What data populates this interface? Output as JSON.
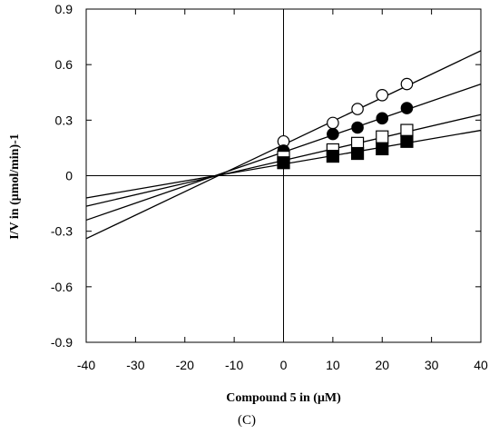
{
  "chart_data": {
    "type": "scatter",
    "title": "",
    "panel_label": "(C)",
    "xlabel": "Compound 5 in (μM)",
    "ylabel": "I/V in (μmol/min)-1",
    "xlim": [
      -40,
      40
    ],
    "ylim": [
      -0.9,
      0.9
    ],
    "x_ticks": [
      -40,
      -30,
      -20,
      -10,
      0,
      10,
      20,
      30,
      40
    ],
    "y_ticks": [
      -0.9,
      -0.6,
      -0.3,
      0,
      0.3,
      0.6,
      0.9
    ],
    "y_tick_labels": [
      "-0.9",
      "-0.6",
      "-0.3",
      "0",
      "0.3",
      "0.6",
      "0.9"
    ],
    "grid": false,
    "legend": "none",
    "x": [
      0,
      10,
      15,
      20,
      25
    ],
    "series": [
      {
        "marker": "open-circle",
        "values": [
          0.185,
          0.285,
          0.36,
          0.435,
          0.495
        ],
        "fit_line": {
          "x": [
            -40,
            40
          ],
          "y": [
            -0.34,
            0.675
          ]
        }
      },
      {
        "marker": "filled-circle",
        "values": [
          0.135,
          0.225,
          0.26,
          0.31,
          0.365
        ],
        "fit_line": {
          "x": [
            -40,
            40
          ],
          "y": [
            -0.24,
            0.495
          ]
        }
      },
      {
        "marker": "open-square",
        "values": [
          0.1,
          0.14,
          0.175,
          0.21,
          0.245
        ],
        "fit_line": {
          "x": [
            -40,
            40
          ],
          "y": [
            -0.165,
            0.33
          ]
        }
      },
      {
        "marker": "filled-square",
        "values": [
          0.07,
          0.105,
          0.12,
          0.145,
          0.185
        ],
        "fit_line": {
          "x": [
            -40,
            40
          ],
          "y": [
            -0.12,
            0.245
          ]
        }
      }
    ]
  }
}
